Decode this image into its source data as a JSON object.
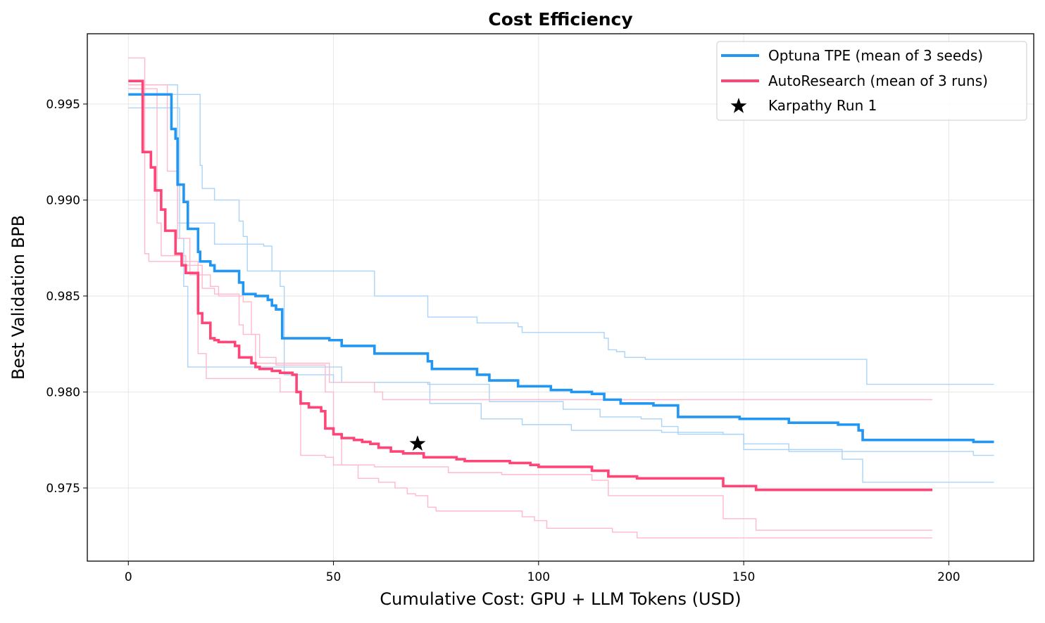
{
  "chart_data": {
    "type": "line",
    "title": "Cost Efficiency",
    "xlabel": "Cumulative Cost: GPU + LLM Tokens (USD)",
    "ylabel": "Best Validation BPB",
    "xlim": [
      -10,
      220.7
    ],
    "ylim": [
      0.97119,
      0.99866
    ],
    "xticks": [
      0,
      50,
      100,
      150,
      200
    ],
    "xtick_labels": [
      "0",
      "50",
      "100",
      "150",
      "200"
    ],
    "yticks": [
      0.975,
      0.98,
      0.985,
      0.99,
      0.995
    ],
    "ytick_labels": [
      "0.975",
      "0.980",
      "0.985",
      "0.990",
      "0.995"
    ],
    "grid": true,
    "legend_position": "top-right",
    "step": "post",
    "colors": {
      "optuna": "#2196f3",
      "optuna_light": "#a9d4f8",
      "auto": "#ff4577",
      "auto_light": "#ffb8cc",
      "star": "#000000"
    },
    "series": [
      {
        "name": "Optuna TPE (mean of 3 seeds)",
        "key": "optuna",
        "points": [
          [
            0,
            0.9955
          ],
          [
            10,
            0.9955
          ],
          [
            10.5,
            0.9937
          ],
          [
            11.5,
            0.9932
          ],
          [
            12,
            0.9908
          ],
          [
            13.5,
            0.9899
          ],
          [
            14.5,
            0.9885
          ],
          [
            17,
            0.9873
          ],
          [
            17.5,
            0.9868
          ],
          [
            20,
            0.9866
          ],
          [
            21,
            0.9863
          ],
          [
            27,
            0.9857
          ],
          [
            28,
            0.9851
          ],
          [
            31,
            0.985
          ],
          [
            34,
            0.9848
          ],
          [
            35,
            0.9845
          ],
          [
            36,
            0.9843
          ],
          [
            37.5,
            0.9828
          ],
          [
            49,
            0.9827
          ],
          [
            52,
            0.9824
          ],
          [
            60,
            0.982
          ],
          [
            73,
            0.9816
          ],
          [
            74,
            0.9812
          ],
          [
            85,
            0.9809
          ],
          [
            88,
            0.9806
          ],
          [
            95,
            0.9803
          ],
          [
            103,
            0.9801
          ],
          [
            108,
            0.98
          ],
          [
            113,
            0.9799
          ],
          [
            116,
            0.9796
          ],
          [
            120,
            0.9794
          ],
          [
            128,
            0.9793
          ],
          [
            134,
            0.9787
          ],
          [
            149,
            0.9786
          ],
          [
            161,
            0.9784
          ],
          [
            173,
            0.9783
          ],
          [
            178,
            0.978
          ],
          [
            179,
            0.9775
          ],
          [
            206,
            0.9774
          ],
          [
            211,
            0.9774
          ]
        ]
      },
      {
        "name": "AutoResearch (mean of 3 runs)",
        "key": "auto",
        "points": [
          [
            0,
            0.9962
          ],
          [
            3.5,
            0.9925
          ],
          [
            5.5,
            0.9917
          ],
          [
            6.5,
            0.9905
          ],
          [
            8,
            0.9895
          ],
          [
            9,
            0.9884
          ],
          [
            11.5,
            0.9872
          ],
          [
            13,
            0.9866
          ],
          [
            14,
            0.9862
          ],
          [
            17,
            0.9841
          ],
          [
            18,
            0.9836
          ],
          [
            20,
            0.9828
          ],
          [
            21,
            0.9827
          ],
          [
            22,
            0.9826
          ],
          [
            26,
            0.9824
          ],
          [
            27,
            0.9818
          ],
          [
            30,
            0.9815
          ],
          [
            31,
            0.9813
          ],
          [
            32,
            0.9812
          ],
          [
            35,
            0.9811
          ],
          [
            37,
            0.981
          ],
          [
            40,
            0.9809
          ],
          [
            41,
            0.98
          ],
          [
            42,
            0.9794
          ],
          [
            44,
            0.9792
          ],
          [
            47,
            0.979
          ],
          [
            48,
            0.9781
          ],
          [
            50,
            0.9778
          ],
          [
            52,
            0.9776
          ],
          [
            55,
            0.9775
          ],
          [
            57,
            0.9774
          ],
          [
            59,
            0.9773
          ],
          [
            61,
            0.9771
          ],
          [
            64,
            0.9769
          ],
          [
            67,
            0.9768
          ],
          [
            72,
            0.9766
          ],
          [
            80,
            0.9765
          ],
          [
            82,
            0.9764
          ],
          [
            93,
            0.9763
          ],
          [
            98,
            0.9762
          ],
          [
            100,
            0.9761
          ],
          [
            113,
            0.9759
          ],
          [
            117,
            0.9756
          ],
          [
            124,
            0.9755
          ],
          [
            145,
            0.9751
          ],
          [
            153,
            0.9749
          ],
          [
            196,
            0.9749
          ]
        ]
      }
    ],
    "individual_runs": [
      {
        "key": "optuna_light",
        "points": [
          [
            0,
            0.996
          ],
          [
            11,
            0.996
          ],
          [
            12,
            0.9888
          ],
          [
            21,
            0.9877
          ],
          [
            33,
            0.9876
          ],
          [
            35,
            0.9863
          ],
          [
            37,
            0.9855
          ],
          [
            38,
            0.9809
          ],
          [
            50,
            0.9805
          ],
          [
            73,
            0.9804
          ],
          [
            88,
            0.9795
          ],
          [
            106,
            0.9791
          ],
          [
            115,
            0.9787
          ],
          [
            125,
            0.9786
          ],
          [
            130,
            0.9782
          ],
          [
            134,
            0.9778
          ],
          [
            150,
            0.9773
          ],
          [
            161,
            0.9769
          ],
          [
            206,
            0.9767
          ],
          [
            211,
            0.9767
          ]
        ]
      },
      {
        "key": "optuna_light",
        "points": [
          [
            0,
            0.9955
          ],
          [
            17,
            0.9955
          ],
          [
            17.5,
            0.9918
          ],
          [
            18,
            0.9906
          ],
          [
            21,
            0.99
          ],
          [
            27,
            0.9889
          ],
          [
            28,
            0.9881
          ],
          [
            29,
            0.9863
          ],
          [
            60,
            0.985
          ],
          [
            73,
            0.9839
          ],
          [
            85,
            0.9836
          ],
          [
            95,
            0.9834
          ],
          [
            96,
            0.9831
          ],
          [
            116,
            0.9828
          ],
          [
            117,
            0.9822
          ],
          [
            119,
            0.9821
          ],
          [
            121,
            0.9818
          ],
          [
            126,
            0.9817
          ],
          [
            180,
            0.9804
          ],
          [
            211,
            0.9804
          ]
        ]
      },
      {
        "key": "optuna_light",
        "points": [
          [
            0,
            0.9948
          ],
          [
            12,
            0.9948
          ],
          [
            12.5,
            0.988
          ],
          [
            13.5,
            0.9855
          ],
          [
            14.5,
            0.9813
          ],
          [
            52,
            0.9805
          ],
          [
            73.5,
            0.9794
          ],
          [
            86,
            0.9786
          ],
          [
            96,
            0.9783
          ],
          [
            108,
            0.978
          ],
          [
            130,
            0.9779
          ],
          [
            145,
            0.9778
          ],
          [
            150,
            0.977
          ],
          [
            174,
            0.9765
          ],
          [
            179,
            0.9753
          ],
          [
            211,
            0.9753
          ]
        ]
      },
      {
        "key": "auto_light",
        "points": [
          [
            0,
            0.9974
          ],
          [
            3.5,
            0.9974
          ],
          [
            4,
            0.9872
          ],
          [
            5,
            0.9868
          ],
          [
            17,
            0.982
          ],
          [
            19,
            0.9807
          ],
          [
            37,
            0.98
          ],
          [
            42,
            0.9767
          ],
          [
            48,
            0.9766
          ],
          [
            50,
            0.9762
          ],
          [
            60,
            0.9761
          ],
          [
            78,
            0.9758
          ],
          [
            91,
            0.9757
          ],
          [
            113,
            0.9754
          ],
          [
            117,
            0.9746
          ],
          [
            145,
            0.9734
          ],
          [
            153,
            0.9728
          ],
          [
            196,
            0.9728
          ]
        ]
      },
      {
        "key": "auto_light",
        "points": [
          [
            0,
            0.9958
          ],
          [
            6,
            0.9958
          ],
          [
            7,
            0.9888
          ],
          [
            8,
            0.9871
          ],
          [
            14,
            0.9866
          ],
          [
            18,
            0.9854
          ],
          [
            21,
            0.9851
          ],
          [
            27,
            0.9835
          ],
          [
            28,
            0.983
          ],
          [
            31,
            0.9815
          ],
          [
            49,
            0.9805
          ],
          [
            60,
            0.98
          ],
          [
            62,
            0.9796
          ],
          [
            196,
            0.9796
          ]
        ]
      },
      {
        "key": "auto_light",
        "points": [
          [
            0,
            0.996
          ],
          [
            9,
            0.996
          ],
          [
            9.5,
            0.9915
          ],
          [
            12,
            0.988
          ],
          [
            15,
            0.9861
          ],
          [
            20,
            0.9855
          ],
          [
            22,
            0.985
          ],
          [
            28,
            0.9847
          ],
          [
            30,
            0.983
          ],
          [
            32,
            0.9818
          ],
          [
            36,
            0.9814
          ],
          [
            48,
            0.98
          ],
          [
            50,
            0.9778
          ],
          [
            52,
            0.9762
          ],
          [
            56,
            0.9755
          ],
          [
            61,
            0.9753
          ],
          [
            65,
            0.975
          ],
          [
            68,
            0.9747
          ],
          [
            70,
            0.9746
          ],
          [
            73,
            0.974
          ],
          [
            75,
            0.9738
          ],
          [
            96,
            0.9735
          ],
          [
            99,
            0.9733
          ],
          [
            102,
            0.9729
          ],
          [
            118,
            0.9727
          ],
          [
            124,
            0.9724
          ],
          [
            196,
            0.9724
          ]
        ]
      }
    ],
    "markers": [
      {
        "name": "Karpathy Run 1",
        "x": 70.5,
        "y": 0.9773,
        "symbol": "star"
      }
    ]
  }
}
